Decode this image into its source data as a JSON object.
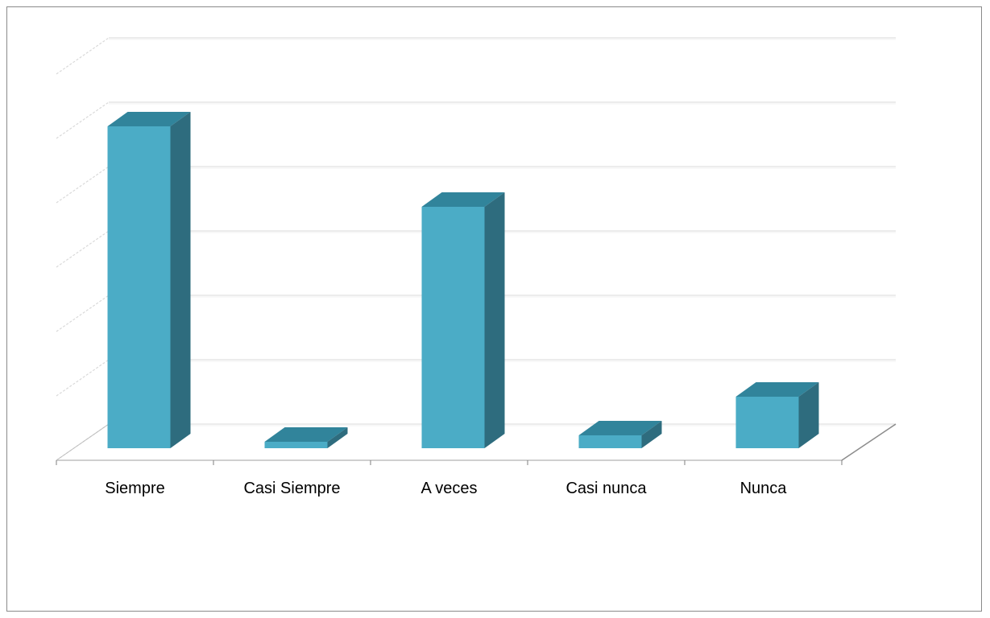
{
  "chart_data": {
    "type": "bar",
    "style": "3d-column",
    "categories": [
      "Siempre",
      "Casi Siempre",
      "A veces",
      "Casi nunca",
      "Nunca"
    ],
    "values": [
      50,
      1,
      37.5,
      2,
      8
    ],
    "ylim": [
      0,
      60
    ],
    "grid": true,
    "legend": "none",
    "title": "",
    "xlabel": "",
    "ylabel": ""
  },
  "colors": {
    "bar_front": "#4bacc6",
    "bar_top": "#31849b",
    "bar_side": "#2e6c7e",
    "gridline": "#d9d9d9",
    "floor": "#bfbfbf",
    "frame": "#8a8a8a"
  }
}
